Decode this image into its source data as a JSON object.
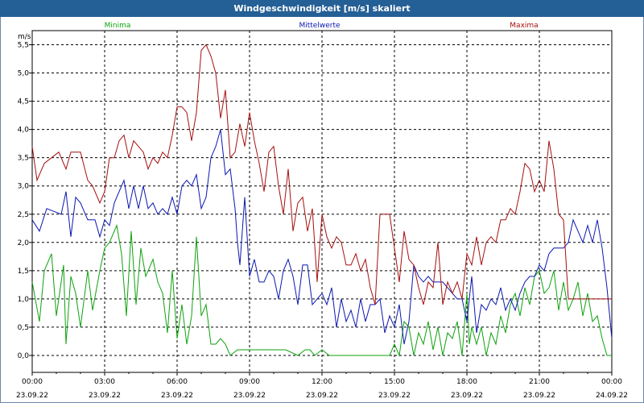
{
  "title": "Windgeschwindigkeit [m/s] skaliert",
  "unit_label": "m/s",
  "colors": {
    "titlebar": "#245f95",
    "minima": "#0da20d",
    "mittel": "#0a17b0",
    "maxima": "#a50e0e",
    "grid": "#000000"
  },
  "chart_data": {
    "type": "line",
    "title": "Windgeschwindigkeit [m/s] skaliert",
    "ylabel": "m/s",
    "xlim": [
      0,
      24
    ],
    "ylim": [
      -0.3,
      5.75
    ],
    "yticks": [
      "0,0",
      "0,5",
      "1,0",
      "1,5",
      "2,0",
      "2,5",
      "3,0",
      "3,5",
      "4,0",
      "4,5",
      "5,0",
      "5,5"
    ],
    "ytick_values": [
      0,
      0.5,
      1,
      1.5,
      2,
      2.5,
      3,
      3.5,
      4,
      4.5,
      5,
      5.5
    ],
    "xticks": [
      {
        "time": "00:00",
        "date": "23.09.22"
      },
      {
        "time": "03:00",
        "date": "23.09.22"
      },
      {
        "time": "06:00",
        "date": "23.09.22"
      },
      {
        "time": "09:00",
        "date": "23.09.22"
      },
      {
        "time": "12:00",
        "date": "23.09.22"
      },
      {
        "time": "15:00",
        "date": "23.09.22"
      },
      {
        "time": "18:00",
        "date": "23.09.22"
      },
      {
        "time": "21:00",
        "date": "23.09.22"
      },
      {
        "time": "00:00",
        "date": "24.09.22"
      }
    ],
    "xtick_values": [
      0,
      3,
      6,
      9,
      12,
      15,
      18,
      21,
      24
    ],
    "grid": true,
    "series": [
      {
        "name": "Minima",
        "color": "#0da20d",
        "x": [
          0,
          0.3,
          0.5,
          0.8,
          1,
          1.3,
          1.4,
          1.6,
          1.8,
          2,
          2.3,
          2.5,
          2.8,
          3,
          3.2,
          3.5,
          3.7,
          3.9,
          4.1,
          4.3,
          4.5,
          4.7,
          5,
          5.2,
          5.4,
          5.6,
          5.8,
          6,
          6.2,
          6.4,
          6.6,
          6.8,
          7,
          7.2,
          7.4,
          7.6,
          7.8,
          8,
          8.2,
          8.5,
          8.8,
          9,
          9.5,
          10,
          10.5,
          11,
          11.3,
          11.5,
          11.7,
          12,
          12.3,
          12.5,
          13,
          14,
          14.5,
          14.8,
          15,
          15.2,
          15.4,
          15.6,
          15.8,
          16,
          16.2,
          16.4,
          16.6,
          16.8,
          17,
          17.2,
          17.4,
          17.6,
          17.8,
          18,
          18.1,
          18.2,
          18.4,
          18.6,
          18.8,
          19,
          19.2,
          19.4,
          19.6,
          19.8,
          20,
          20.2,
          20.4,
          20.6,
          20.8,
          21,
          21.2,
          21.4,
          21.6,
          21.8,
          22,
          22.2,
          22.4,
          22.6,
          22.8,
          23,
          23.2,
          23.4,
          23.6,
          23.8,
          24
        ],
        "values": [
          1.3,
          0.6,
          1.5,
          1.8,
          0.7,
          1.6,
          0.2,
          1.4,
          1.1,
          0.5,
          1.5,
          0.8,
          1.5,
          1.9,
          2.0,
          2.3,
          1.8,
          0.7,
          2.2,
          0.9,
          1.9,
          1.4,
          1.7,
          1.3,
          1.1,
          0.4,
          1.5,
          0.3,
          0.9,
          0.2,
          0.7,
          2.1,
          0.7,
          0.9,
          0.2,
          0.2,
          0.3,
          0.2,
          0.0,
          0.1,
          0.1,
          0.1,
          0.1,
          0.1,
          0.1,
          0.0,
          0.1,
          0.1,
          0.0,
          0.1,
          0.0,
          0.0,
          0.0,
          0.0,
          0.0,
          0.0,
          0.2,
          0.0,
          0.6,
          0.5,
          0.0,
          0.4,
          0.2,
          0.6,
          0.1,
          0.5,
          0.0,
          0.4,
          0.3,
          0.6,
          0.0,
          1.1,
          0.2,
          0.5,
          0.2,
          0.5,
          0.0,
          0.4,
          0.2,
          0.7,
          0.4,
          0.9,
          1.1,
          0.7,
          1.2,
          0.9,
          1.4,
          1.5,
          1.1,
          1.2,
          1.5,
          0.8,
          1.3,
          0.8,
          1.0,
          1.3,
          0.7,
          1.1,
          0.6,
          0.7,
          0.3,
          0.0,
          0.0
        ]
      },
      {
        "name": "Mittelwerte",
        "color": "#0a17b0",
        "x": [
          0,
          0.3,
          0.6,
          0.9,
          1.2,
          1.4,
          1.6,
          1.8,
          2,
          2.3,
          2.6,
          2.8,
          3,
          3.2,
          3.4,
          3.6,
          3.8,
          4,
          4.2,
          4.4,
          4.6,
          4.8,
          5,
          5.2,
          5.4,
          5.6,
          5.8,
          6,
          6.2,
          6.4,
          6.6,
          6.8,
          7,
          7.2,
          7.4,
          7.6,
          7.8,
          8,
          8.2,
          8.4,
          8.5,
          8.6,
          8.8,
          9,
          9.2,
          9.4,
          9.6,
          9.8,
          10,
          10.2,
          10.4,
          10.6,
          10.8,
          11,
          11.2,
          11.4,
          11.6,
          11.8,
          12,
          12.2,
          12.4,
          12.6,
          12.8,
          13,
          13.2,
          13.4,
          13.6,
          13.8,
          14,
          14.2,
          14.4,
          14.6,
          14.8,
          15,
          15.2,
          15.4,
          15.6,
          15.8,
          16,
          16.2,
          16.4,
          16.6,
          16.8,
          17,
          17.2,
          17.4,
          17.6,
          17.8,
          18,
          18.2,
          18.4,
          18.6,
          18.8,
          19,
          19.2,
          19.4,
          19.6,
          19.8,
          20,
          20.2,
          20.4,
          20.6,
          20.8,
          21,
          21.2,
          21.4,
          21.6,
          21.8,
          22,
          22.2,
          22.4,
          22.6,
          22.8,
          23,
          23.2,
          23.4,
          23.6,
          23.8,
          24
        ],
        "values": [
          2.4,
          2.2,
          2.6,
          2.55,
          2.5,
          2.9,
          2.1,
          2.8,
          2.7,
          2.4,
          2.4,
          2.1,
          2.4,
          2.3,
          2.7,
          2.9,
          3.1,
          2.6,
          3.0,
          2.6,
          3.0,
          2.6,
          2.7,
          2.5,
          2.6,
          2.5,
          2.8,
          2.5,
          3.0,
          3.1,
          3.0,
          3.2,
          2.6,
          2.8,
          3.5,
          3.7,
          4.0,
          3.2,
          3.3,
          2.6,
          2.0,
          1.6,
          2.8,
          1.4,
          1.7,
          1.3,
          1.3,
          1.5,
          1.4,
          1.0,
          1.5,
          1.7,
          1.4,
          0.9,
          1.6,
          1.6,
          0.9,
          1.0,
          1.1,
          0.9,
          1.2,
          0.5,
          1.0,
          0.6,
          0.8,
          0.5,
          1.0,
          0.6,
          0.9,
          0.9,
          1.0,
          0.4,
          0.7,
          0.5,
          0.9,
          0.2,
          0.6,
          1.6,
          1.4,
          1.3,
          1.4,
          1.3,
          1.3,
          1.3,
          1.2,
          1.1,
          1.0,
          1.0,
          0.6,
          1.4,
          0.4,
          0.9,
          0.8,
          1.0,
          0.9,
          1.2,
          0.8,
          1.0,
          0.8,
          1.1,
          1.3,
          1.4,
          1.4,
          1.6,
          1.5,
          1.8,
          1.9,
          1.9,
          1.9,
          2.0,
          2.4,
          2.2,
          2.0,
          2.3,
          2.0,
          2.4,
          1.9,
          1.2,
          0.3
        ]
      },
      {
        "name": "Maxima",
        "color": "#a50e0e",
        "x": [
          0,
          0.2,
          0.5,
          0.8,
          1.1,
          1.4,
          1.6,
          1.8,
          2,
          2.3,
          2.5,
          2.8,
          3,
          3.2,
          3.4,
          3.6,
          3.8,
          4,
          4.2,
          4.4,
          4.6,
          4.8,
          5,
          5.2,
          5.4,
          5.6,
          5.8,
          6,
          6.2,
          6.4,
          6.6,
          6.8,
          7,
          7.2,
          7.4,
          7.6,
          7.8,
          8,
          8.2,
          8.4,
          8.6,
          8.8,
          9,
          9.2,
          9.4,
          9.6,
          9.8,
          10,
          10.2,
          10.4,
          10.6,
          10.8,
          11,
          11.2,
          11.4,
          11.6,
          11.8,
          12,
          12.2,
          12.4,
          12.6,
          12.8,
          13,
          13.2,
          13.4,
          13.6,
          13.8,
          14,
          14.2,
          14.4,
          14.6,
          14.8,
          15,
          15.2,
          15.4,
          15.6,
          15.8,
          16,
          16.2,
          16.4,
          16.6,
          16.8,
          17,
          17.2,
          17.4,
          17.6,
          17.8,
          18,
          18.2,
          18.4,
          18.6,
          18.8,
          19,
          19.2,
          19.4,
          19.6,
          19.8,
          20,
          20.2,
          20.4,
          20.6,
          20.8,
          21,
          21.2,
          21.4,
          21.6,
          21.8,
          22,
          22.2,
          22.4,
          22.6,
          22.8,
          23,
          23.2,
          23.4,
          23.6,
          23.8,
          24
        ],
        "values": [
          3.7,
          3.1,
          3.4,
          3.5,
          3.6,
          3.3,
          3.6,
          3.6,
          3.6,
          3.1,
          3.0,
          2.7,
          2.9,
          3.5,
          3.5,
          3.8,
          3.9,
          3.5,
          3.8,
          3.7,
          3.6,
          3.3,
          3.5,
          3.4,
          3.6,
          3.5,
          3.9,
          4.4,
          4.4,
          4.3,
          3.8,
          4.3,
          5.4,
          5.5,
          5.3,
          5.0,
          4.2,
          4.7,
          3.5,
          3.6,
          4.1,
          3.7,
          4.3,
          3.8,
          3.4,
          2.9,
          3.6,
          3.7,
          3.0,
          2.5,
          3.3,
          2.2,
          2.7,
          2.8,
          2.2,
          2.6,
          1.3,
          2.5,
          2.1,
          1.9,
          2.1,
          2.0,
          1.6,
          1.6,
          1.8,
          1.5,
          1.7,
          1.2,
          0.9,
          2.5,
          2.5,
          2.5,
          1.9,
          1.3,
          2.2,
          1.7,
          1.6,
          1.2,
          0.9,
          1.3,
          1.2,
          2.0,
          0.9,
          1.3,
          1.1,
          1.3,
          1.0,
          1.8,
          1.6,
          2.1,
          1.6,
          2.0,
          2.1,
          2.0,
          2.4,
          2.4,
          2.6,
          2.5,
          2.9,
          3.4,
          3.3,
          2.9,
          3.1,
          2.9,
          3.8,
          3.3,
          2.5,
          2.4,
          1.0,
          1.0,
          1.0,
          1.0,
          1.0,
          1.0,
          1.0,
          1.0,
          1.0,
          1.0
        ]
      }
    ]
  }
}
